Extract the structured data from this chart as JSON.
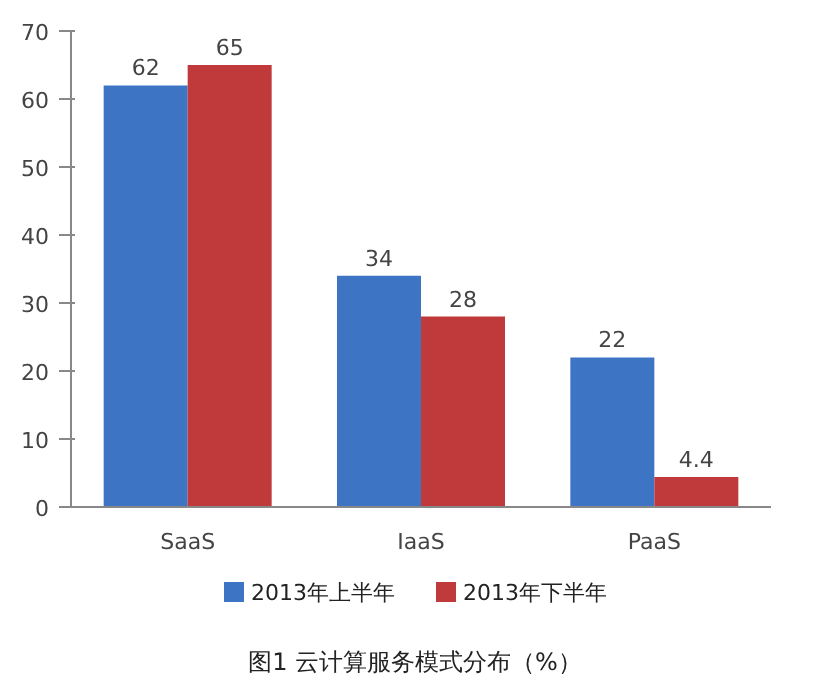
{
  "chart_data": {
    "type": "bar",
    "title": "图1 云计算服务模式分布（%）",
    "categories": [
      "SaaS",
      "IaaS",
      "PaaS"
    ],
    "series": [
      {
        "name": "2013年上半年",
        "color": "#3d74c4",
        "values": [
          62,
          34,
          22
        ]
      },
      {
        "name": "2013年下半年",
        "color": "#c0393b",
        "values": [
          65,
          28,
          4.4
        ]
      }
    ],
    "ylim": [
      0,
      70
    ],
    "yticks": [
      0,
      10,
      20,
      30,
      40,
      50,
      60,
      70
    ],
    "grid": false,
    "legend": "bottom",
    "data_labels": true
  }
}
